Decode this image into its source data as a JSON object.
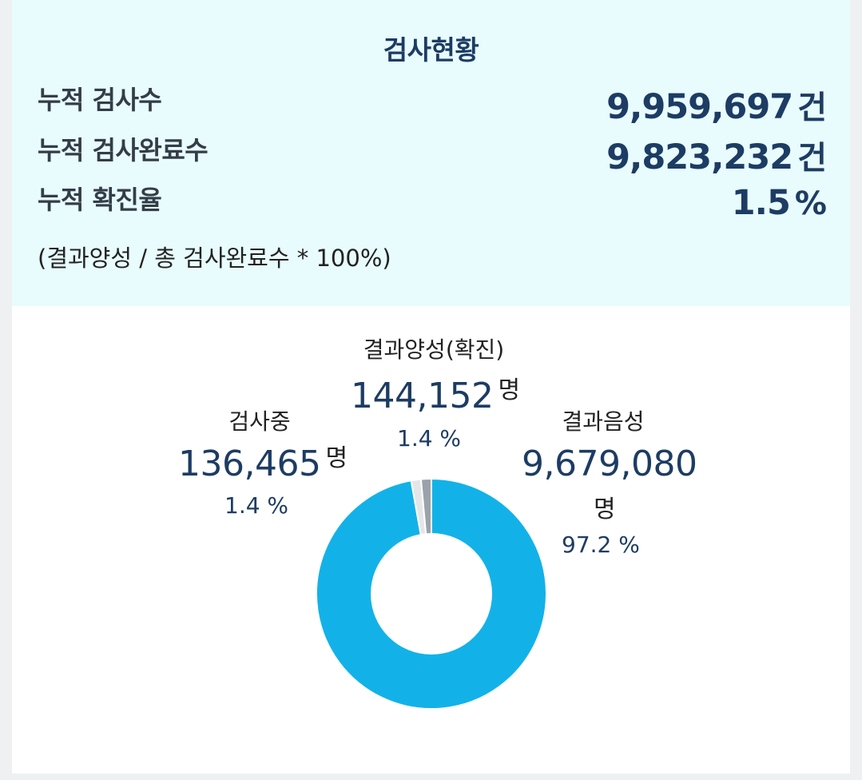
{
  "summary": {
    "title": "검사현황",
    "rows": [
      {
        "label": "누적 검사수",
        "value": "9,959,697",
        "unit": "건"
      },
      {
        "label": "누적 검사완료수",
        "value": "9,823,232",
        "unit": "건"
      },
      {
        "label": "누적 확진율",
        "value": "1.5",
        "unit": "%"
      }
    ],
    "formula": "(결과양성 / 총 검사완료수 * 100%)"
  },
  "donut": {
    "positive": {
      "label": "결과양성(확진)",
      "count": "144,152",
      "unit": "명",
      "pct": "1.4 %"
    },
    "testing": {
      "label": "검사중",
      "count": "136,465",
      "unit": "명",
      "pct": "1.4 %"
    },
    "negative": {
      "label": "결과음성",
      "count": "9,679,080",
      "unit": "명",
      "pct": "97.2 %"
    }
  },
  "chart_data": {
    "type": "pie",
    "categories": [
      "결과음성",
      "검사중",
      "결과양성(확진)"
    ],
    "values": [
      9679080,
      136465,
      144152
    ],
    "percentages": [
      97.2,
      1.4,
      1.4
    ],
    "colors": [
      "#12b2e8",
      "#e4e6e8",
      "#9aa3aa"
    ]
  }
}
